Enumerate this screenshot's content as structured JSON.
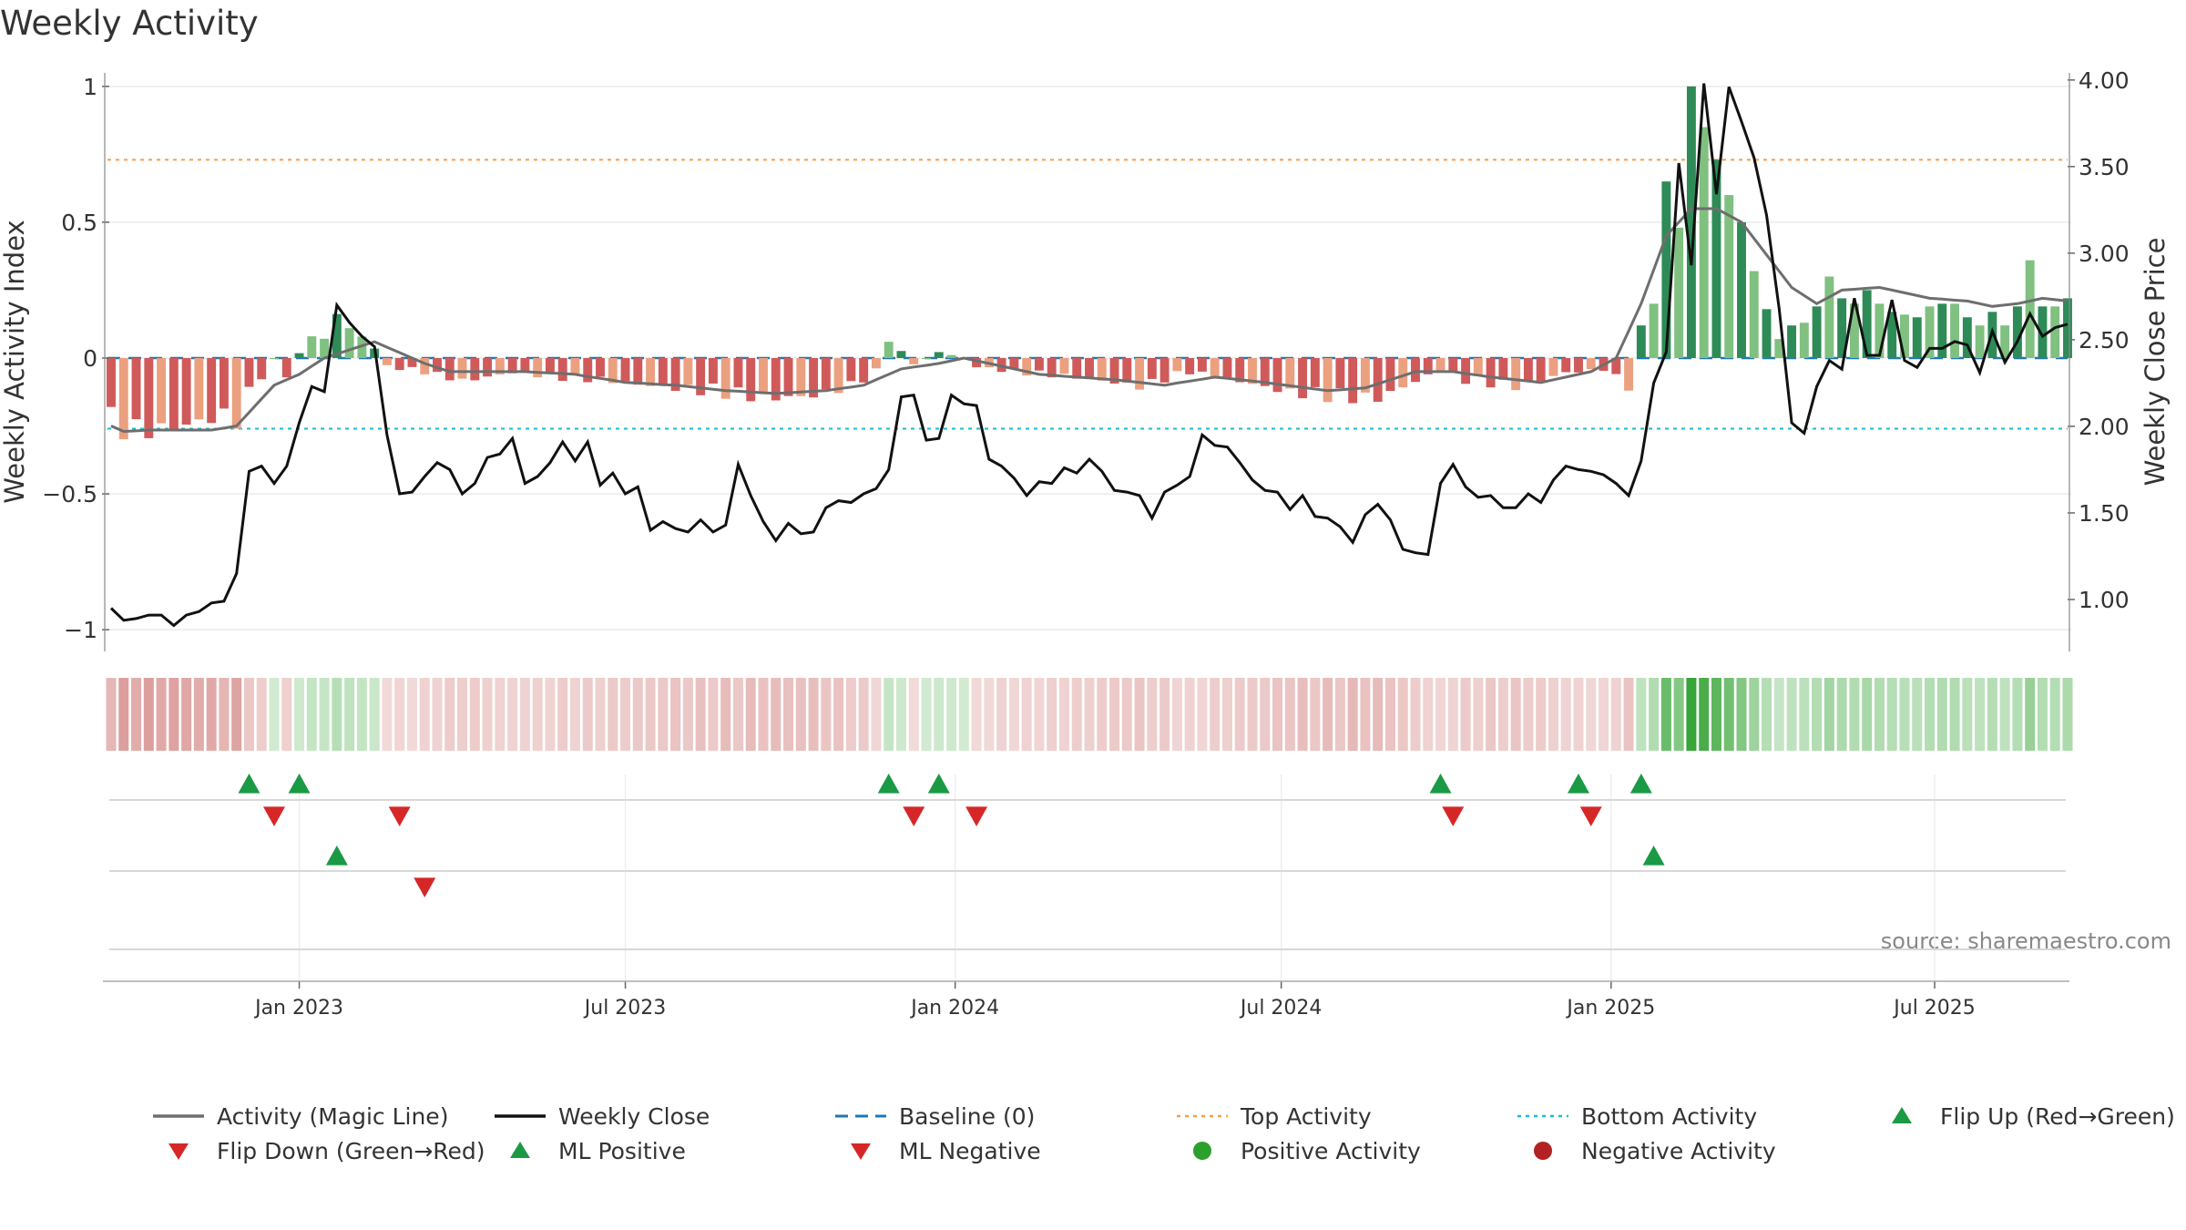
{
  "chart_data": {
    "type": "bar",
    "title": "Weekly Activity",
    "ylabel": "Weekly Activity Index",
    "y2label": "Weekly Close Price",
    "source": "source: sharemaestro.com",
    "ylim": [
      -1.08,
      1.1
    ],
    "y2lim": [
      0.7,
      4.12
    ],
    "yticks": [
      {
        "value": 1,
        "label": "1"
      },
      {
        "value": 0.5,
        "label": "0.5"
      },
      {
        "value": 0,
        "label": "0"
      },
      {
        "value": -0.5,
        "label": "−0.5"
      },
      {
        "value": -1,
        "label": "−1"
      }
    ],
    "y2ticks": [
      "1.00",
      "1.50",
      "2.00",
      "2.50",
      "3.00",
      "3.50",
      "4.00"
    ],
    "xticks": [
      {
        "label": "Jan 2023",
        "week": 15
      },
      {
        "label": "Jul 2023",
        "week": 41
      },
      {
        "label": "Jan 2024",
        "week": 67.3
      },
      {
        "label": "Jul 2024",
        "week": 93.3
      },
      {
        "label": "Jan 2025",
        "week": 119.6
      },
      {
        "label": "Jul 2025",
        "week": 145.4
      }
    ],
    "top_activity": 0.73,
    "bottom_activity": -0.26,
    "weeks": 157,
    "series": [
      {
        "name": "Activity (Magic Line)",
        "color": "#6e6e6e",
        "axis": "left",
        "values": []
      },
      {
        "name": "Weekly Close",
        "color": "#111111",
        "axis": "right",
        "values": []
      },
      {
        "name": "Weekly Activity",
        "axis": "left",
        "values": []
      }
    ],
    "flip_up_weeks": [
      11,
      15,
      62,
      66,
      106,
      117,
      122
    ],
    "flip_down_weeks": [
      13,
      23,
      64,
      69,
      107,
      118
    ],
    "ml_positive_weeks": [
      18,
      123
    ],
    "ml_negative_weeks": [
      25
    ],
    "legend": [
      {
        "label": "Activity (Magic Line)",
        "kind": "line",
        "color": "#6e6e6e"
      },
      {
        "label": "Weekly Close",
        "kind": "line",
        "color": "#111111"
      },
      {
        "label": "Baseline (0)",
        "kind": "dash",
        "color": "#1f77b4"
      },
      {
        "label": "Top Activity",
        "kind": "dot",
        "color": "#f0a050"
      },
      {
        "label": "Bottom Activity",
        "kind": "dot",
        "color": "#17becf"
      },
      {
        "label": "Flip Up (Red→Green)",
        "kind": "up",
        "color": "#1a9a45"
      },
      {
        "label": "Flip Down (Green→Red)",
        "kind": "down",
        "color": "#d62728"
      },
      {
        "label": "ML Positive",
        "kind": "up",
        "color": "#1a9a45"
      },
      {
        "label": "ML Negative",
        "kind": "down",
        "color": "#d62728"
      },
      {
        "label": "Positive Activity",
        "kind": "circle",
        "color": "#2ca02c"
      },
      {
        "label": "Negative Activity",
        "kind": "circle",
        "color": "#b22222"
      }
    ],
    "colors": {
      "pos_dark": "#2e8b57",
      "pos_light": "#80c080",
      "neg_dark": "#d05a5a",
      "neg_light": "#eba080",
      "up_marker": "#1a9a45",
      "down_marker": "#d62728"
    }
  }
}
